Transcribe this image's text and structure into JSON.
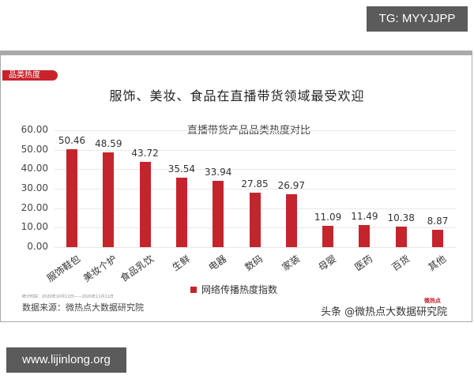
{
  "overlay": {
    "tg_label": "TG: MYYJJPP",
    "url_label": "www.lijinlong.org"
  },
  "card": {
    "tag": "品类热度",
    "title": "服饰、美妆、食品在直播带货领域最受欢迎",
    "period": "统计时段：2020年10月12日——2020年11月11日",
    "source": "数据来源：微热点大数据研究院",
    "watermark": "头条 @微热点大数据研究院",
    "watermark_logo": "微热点"
  },
  "colors": {
    "bar": "#c4252c",
    "tag_bg": "#c8232b",
    "frame": "#a9a9a9",
    "overlay_bg": "#5b5b5b"
  },
  "chart_data": {
    "type": "bar",
    "title": "直播带货产品品类热度对比",
    "xlabel": "",
    "ylabel": "",
    "categories": [
      "服饰鞋包",
      "美妆个护",
      "食品乳饮",
      "生鲜",
      "电器",
      "数码",
      "家装",
      "母婴",
      "医药",
      "百货",
      "其他"
    ],
    "series": [
      {
        "name": "网络传播热度指数",
        "values": [
          50.46,
          48.59,
          43.72,
          35.54,
          33.94,
          27.85,
          26.97,
          11.09,
          11.49,
          10.38,
          8.87
        ]
      }
    ],
    "value_labels": [
      "50.46",
      "48.59",
      "43.72",
      "35.54",
      "33.94",
      "27.85",
      "26.97",
      "11.09",
      "11.49",
      "10.38",
      "8.87"
    ],
    "yticks": [
      "0.00",
      "10.00",
      "20.00",
      "30.00",
      "40.00",
      "50.00",
      "60.00"
    ],
    "ylim": [
      0,
      60
    ],
    "grid": true,
    "legend_position": "bottom"
  }
}
